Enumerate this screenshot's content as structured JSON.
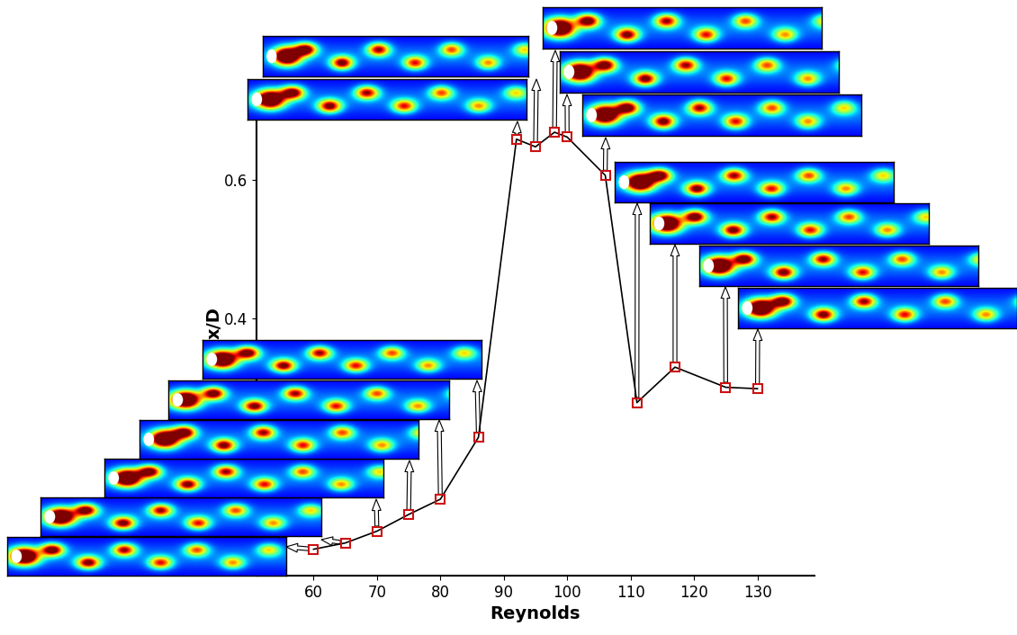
{
  "chart_data": {
    "type": "line",
    "x": [
      60,
      65,
      70,
      75,
      80,
      86,
      92,
      95,
      98,
      100,
      106,
      111,
      117,
      125,
      130
    ],
    "values": [
      0.068,
      0.077,
      0.094,
      0.118,
      0.14,
      0.229,
      0.658,
      0.647,
      0.668,
      0.661,
      0.606,
      0.279,
      0.33,
      0.301,
      0.299
    ],
    "xlabel": "Reynolds",
    "ylabel": "x/D",
    "xlim": [
      51,
      139
    ],
    "ylim": [
      0.03,
      0.69
    ],
    "xticks": [
      60,
      70,
      80,
      90,
      100,
      110,
      120,
      130
    ],
    "yticks": [
      0.4,
      0.6
    ],
    "color": "#000000",
    "marker": "square",
    "line_style": "solid"
  }
}
